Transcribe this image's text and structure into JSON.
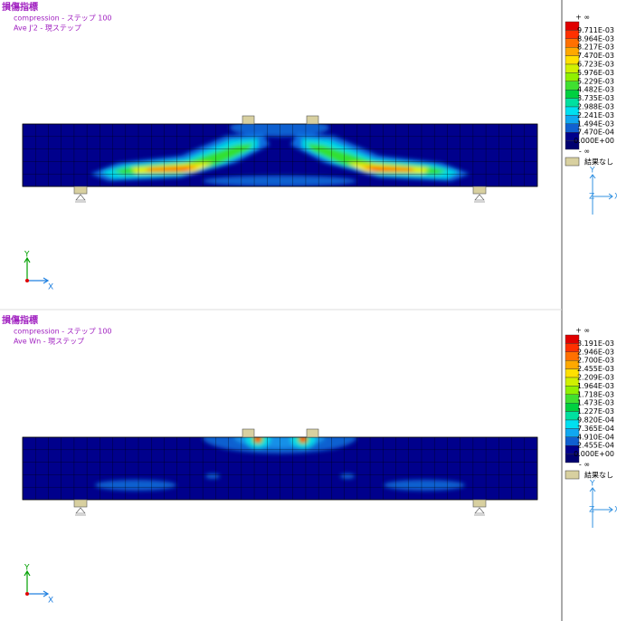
{
  "panels": [
    {
      "title": "損傷指標",
      "subtitle": "compression - ステップ 100",
      "result": "Ave J'2 - 現ステップ",
      "legend": {
        "top": "+ ∞",
        "bottom": "- ∞",
        "no_result": "結果なし",
        "values": [
          "9.711E-03",
          "8.964E-03",
          "8.217E-03",
          "7.470E-03",
          "6.723E-03",
          "5.976E-03",
          "5.229E-03",
          "4.482E-03",
          "3.735E-03",
          "2.988E-03",
          "2.241E-03",
          "1.494E-03",
          "7.470E-04",
          "0.000E+00"
        ]
      },
      "axes": {
        "beam_y": "Y",
        "beam_x": "X",
        "triad_y": "Y",
        "triad_x": "X",
        "triad_z": "Z"
      }
    },
    {
      "title": "損傷指標",
      "subtitle": "compression - ステップ 100",
      "result": "Ave Wn - 現ステップ",
      "legend": {
        "top": "+ ∞",
        "bottom": "- ∞",
        "no_result": "結果なし",
        "values": [
          "3.191E-03",
          "2.946E-03",
          "2.700E-03",
          "2.455E-03",
          "2.209E-03",
          "1.964E-03",
          "1.718E-03",
          "1.473E-03",
          "1.227E-03",
          "9.820E-04",
          "7.365E-04",
          "4.910E-04",
          "2.455E-04",
          "0.000E+00"
        ]
      },
      "axes": {
        "beam_y": "Y",
        "beam_x": "X",
        "triad_y": "Y",
        "triad_x": "X",
        "triad_z": "Z"
      }
    }
  ]
}
